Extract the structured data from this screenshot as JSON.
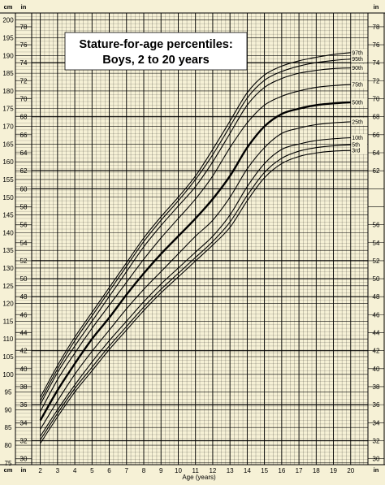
{
  "chart_data": {
    "type": "line",
    "title_line1": "Stature-for-age percentiles:",
    "title_line2": "Boys, 2 to 20 years",
    "xlabel": "Age (years)",
    "unit_left": "cm",
    "unit_inner": "in",
    "xlim": [
      1.5,
      21
    ],
    "ylim": [
      74.5,
      202
    ],
    "x_ticks": [
      "2",
      "3",
      "4",
      "5",
      "6",
      "7",
      "8",
      "9",
      "10",
      "11",
      "12",
      "13",
      "14",
      "15",
      "16",
      "17",
      "18",
      "19",
      "20"
    ],
    "cm_ticks": [
      75,
      80,
      85,
      90,
      95,
      100,
      105,
      110,
      115,
      120,
      125,
      130,
      135,
      140,
      145,
      150,
      155,
      160,
      165,
      170,
      175,
      180,
      185,
      190,
      195,
      200
    ],
    "in_ticks": [
      30,
      32,
      34,
      36,
      38,
      40,
      42,
      44,
      46,
      48,
      50,
      52,
      54,
      56,
      58,
      60,
      62,
      64,
      66,
      68,
      70,
      72,
      74,
      76,
      78
    ],
    "in_ticks_right_upper": [
      62,
      64,
      66,
      68,
      70,
      72,
      74,
      76,
      78
    ],
    "in_ticks_right_lower": [
      30,
      32,
      34,
      36,
      38,
      40,
      42,
      44,
      46,
      48,
      50,
      52,
      54,
      56
    ],
    "ages": [
      2,
      3,
      4,
      5,
      6,
      7,
      8,
      9,
      10,
      11,
      12,
      13,
      14,
      15,
      16,
      17,
      18,
      19,
      20
    ],
    "series": [
      {
        "name": "97th",
        "values": [
          93.5,
          102.5,
          110.5,
          117.5,
          124.5,
          131.5,
          138.5,
          144.5,
          150.0,
          156.0,
          163.5,
          171.5,
          179.5,
          184.5,
          187.0,
          188.5,
          189.5,
          190.3,
          190.8
        ]
      },
      {
        "name": "95th",
        "values": [
          92.5,
          101.5,
          109.5,
          116.5,
          123.5,
          130.5,
          137.5,
          143.5,
          149.0,
          155.0,
          162.0,
          170.0,
          178.0,
          183.0,
          185.5,
          187.0,
          188.0,
          188.6,
          189.0
        ]
      },
      {
        "name": "90th",
        "values": [
          91.5,
          100.5,
          108.0,
          115.0,
          122.0,
          129.0,
          136.0,
          142.0,
          147.5,
          153.0,
          160.0,
          168.0,
          176.0,
          181.0,
          183.5,
          185.0,
          185.8,
          186.3,
          186.5
        ]
      },
      {
        "name": "75th",
        "values": [
          89.5,
          98.5,
          106.0,
          113.0,
          119.5,
          126.0,
          132.5,
          138.5,
          144.0,
          149.5,
          156.0,
          164.0,
          171.0,
          176.0,
          178.5,
          180.0,
          181.0,
          181.5,
          181.8
        ]
      },
      {
        "name": "50th",
        "values": [
          87.0,
          95.5,
          103.0,
          110.0,
          116.0,
          122.5,
          128.5,
          134.0,
          139.0,
          144.0,
          149.5,
          156.0,
          164.0,
          170.0,
          173.5,
          175.0,
          176.0,
          176.5,
          176.8
        ]
      },
      {
        "name": "25th",
        "values": [
          84.5,
          92.5,
          100.0,
          106.5,
          112.5,
          118.5,
          124.0,
          129.0,
          134.0,
          139.0,
          143.5,
          150.0,
          158.0,
          164.0,
          168.0,
          169.5,
          170.5,
          171.0,
          171.3
        ]
      },
      {
        "name": "10th",
        "values": [
          82.5,
          90.0,
          97.0,
          103.5,
          109.5,
          115.0,
          120.5,
          125.5,
          130.0,
          134.5,
          139.0,
          145.0,
          153.0,
          159.5,
          163.5,
          165.0,
          166.0,
          166.5,
          166.8
        ]
      },
      {
        "name": "5th",
        "values": [
          81.5,
          89.0,
          96.0,
          102.0,
          108.0,
          113.5,
          119.0,
          124.0,
          128.5,
          133.0,
          137.5,
          143.0,
          150.5,
          157.0,
          161.0,
          163.0,
          164.0,
          164.5,
          164.8
        ]
      },
      {
        "name": "3rd",
        "values": [
          80.5,
          88.0,
          95.0,
          101.0,
          107.0,
          112.5,
          118.0,
          123.0,
          127.5,
          132.0,
          136.5,
          141.5,
          149.0,
          155.5,
          159.5,
          161.5,
          162.5,
          163.0,
          163.2
        ]
      }
    ]
  }
}
